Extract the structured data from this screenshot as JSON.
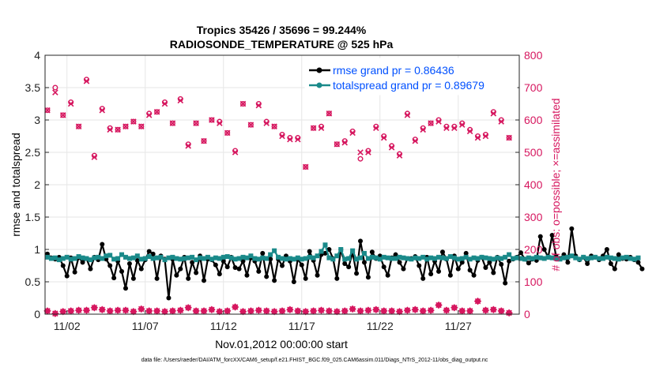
{
  "chart_data": {
    "type": "line",
    "title": "Tropics 35426 / 35696 = 99.244%",
    "subtitle": "RADIOSONDE_TEMPERATURE @ 525 hPa",
    "xlabel": "Nov.01,2012 00:00:00 start",
    "ylabel_left": "rmse and totalspread",
    "ylabel_right": "# of obs: o=possible; ×=assimilated",
    "footer": "data file: /Users/raeder/DAI/ATM_forcXX/CAM6_setup/f.e21.FHIST_BGC.f09_025.CAM6assim.011/Diags_NTrS_2012-11/obs_diag_output.nc",
    "xlim": [
      0.6,
      30.9
    ],
    "ylim_left": [
      0,
      4
    ],
    "ylim_right": [
      0,
      800
    ],
    "x_ticks": [
      {
        "v": 2,
        "label": "11/02"
      },
      {
        "v": 7,
        "label": "11/07"
      },
      {
        "v": 12,
        "label": "11/12"
      },
      {
        "v": 17,
        "label": "11/17"
      },
      {
        "v": 22,
        "label": "11/22"
      },
      {
        "v": 27,
        "label": "11/27"
      }
    ],
    "y_ticks_left": [
      "0",
      "0.5",
      "1",
      "1.5",
      "2",
      "2.5",
      "3",
      "3.5",
      "4"
    ],
    "y_ticks_right": [
      "0",
      "100",
      "200",
      "300",
      "400",
      "500",
      "600",
      "700",
      "800"
    ],
    "colors": {
      "rmse": "#000000",
      "totalspread": "#1a8a8a",
      "obs": "#d6175f",
      "legend_text": "#0050ff",
      "grid": "#e6e6e6"
    },
    "legend": [
      {
        "key": "rmse",
        "label": "rmse grand pr = 0.86436"
      },
      {
        "key": "totalspread",
        "label": "totalspread grand pr = 0.89679"
      }
    ],
    "series": [
      {
        "name": "rmse",
        "x0": 0.75,
        "dx": 0.25,
        "values": [
          0.93,
          0.87,
          0.85,
          0.88,
          0.75,
          0.59,
          0.87,
          0.65,
          0.88,
          0.8,
          0.86,
          0.7,
          0.88,
          0.84,
          1.08,
          0.85,
          0.75,
          0.56,
          0.82,
          0.66,
          0.4,
          0.78,
          0.55,
          0.83,
          0.7,
          0.84,
          0.97,
          0.93,
          0.55,
          0.9,
          0.85,
          0.25,
          0.85,
          0.6,
          0.7,
          0.88,
          0.55,
          0.8,
          0.64,
          0.9,
          0.52,
          0.85,
          0.84,
          0.76,
          0.62,
          0.82,
          0.73,
          0.88,
          0.72,
          0.7,
          0.82,
          0.6,
          0.87,
          0.82,
          0.66,
          0.94,
          0.58,
          0.85,
          0.52,
          0.85,
          0.75,
          0.9,
          0.82,
          0.5,
          0.85,
          0.76,
          0.55,
          0.97,
          0.83,
          0.6,
          0.92,
          0.94,
          1.0,
          0.86,
          0.55,
          1.0,
          0.78,
          0.73,
          0.95,
          0.63,
          1.13,
          0.8,
          0.57,
          0.96,
          0.86,
          0.9,
          0.73,
          0.6,
          0.87,
          0.92,
          0.8,
          0.7,
          0.86,
          0.86,
          0.89,
          0.75,
          0.55,
          0.88,
          0.62,
          0.82,
          0.66,
          0.96,
          0.85,
          0.6,
          0.9,
          0.7,
          0.8,
          0.94,
          0.68,
          0.6,
          0.83,
          0.88,
          0.72,
          0.8,
          0.64,
          0.88,
          0.77,
          0.48,
          0.82,
          0.85,
          0.88,
          0.95,
          0.85,
          0.79,
          0.85,
          0.83,
          1.2,
          1.0,
          0.88,
          1.22,
          0.9,
          0.86,
          0.92,
          0.8,
          1.32,
          0.9,
          0.84,
          0.88,
          0.78,
          0.9,
          0.88,
          0.84,
          0.9,
          1.0,
          0.78,
          0.7,
          0.92,
          0.86,
          0.85,
          0.88,
          0.84,
          0.8,
          0.7
        ]
      },
      {
        "name": "totalspread",
        "x0": 0.75,
        "dx": 0.25,
        "values": [
          0.88,
          0.86,
          0.87,
          0.84,
          0.86,
          0.88,
          0.85,
          0.86,
          0.89,
          0.87,
          0.86,
          0.84,
          0.87,
          0.88,
          0.86,
          0.9,
          0.91,
          0.85,
          0.86,
          0.92,
          0.88,
          0.86,
          0.87,
          0.9,
          0.85,
          0.86,
          0.89,
          0.86,
          0.87,
          0.88,
          0.84,
          0.87,
          0.88,
          0.86,
          0.85,
          0.86,
          0.87,
          0.88,
          0.84,
          0.87,
          0.86,
          0.88,
          0.85,
          0.87,
          0.86,
          0.88,
          0.89,
          0.87,
          0.85,
          0.86,
          0.88,
          0.87,
          0.9,
          0.86,
          0.85,
          0.87,
          0.86,
          0.92,
          0.98,
          0.88,
          0.86,
          0.85,
          0.86,
          0.85,
          0.87,
          0.85,
          0.86,
          0.88,
          0.87,
          0.9,
          0.97,
          1.07,
          0.87,
          0.85,
          0.9,
          1.0,
          0.85,
          0.86,
          0.98,
          0.85,
          0.87,
          0.94,
          0.86,
          0.88,
          0.87,
          0.85,
          0.88,
          0.87,
          0.86,
          0.86,
          0.88,
          0.87,
          0.86,
          0.85,
          0.87,
          0.86,
          0.88,
          0.85,
          0.87,
          0.86,
          0.88,
          0.87,
          0.86,
          0.89,
          0.87,
          0.85,
          0.86,
          0.88,
          0.85,
          0.87,
          0.86,
          0.88,
          0.87,
          0.86,
          0.85,
          0.87,
          0.86,
          0.88,
          0.92,
          0.86,
          0.87,
          0.86,
          0.85,
          0.87,
          0.86,
          0.88,
          0.87,
          0.86,
          0.88,
          0.87,
          0.86,
          0.85,
          0.87,
          0.88,
          0.9,
          0.87,
          0.85,
          0.88,
          0.86,
          0.87,
          0.88,
          0.86,
          0.86,
          0.88,
          0.87,
          0.86,
          0.85,
          0.87,
          0.88,
          0.86,
          0.85,
          0.87
        ]
      },
      {
        "name": "obs_possible",
        "x0": 0.75,
        "dx": 0.5,
        "values": [
          630,
          700,
          615,
          655,
          580,
          725,
          490,
          635,
          575,
          570,
          580,
          595,
          580,
          620,
          625,
          655,
          590,
          665,
          525,
          590,
          535,
          600,
          595,
          560,
          505,
          650,
          585,
          650,
          595,
          580,
          555,
          545,
          545,
          455,
          575,
          580,
          620,
          525,
          535,
          565,
          480,
          505,
          580,
          550,
          520,
          495,
          620,
          540,
          575,
          590,
          600,
          580,
          580,
          590,
          570,
          550,
          555,
          625,
          600,
          545
        ]
      },
      {
        "name": "obs_assimilated",
        "x0": 0.75,
        "dx": 0.5,
        "values": [
          630,
          685,
          615,
          650,
          580,
          720,
          485,
          630,
          570,
          570,
          580,
          595,
          580,
          615,
          625,
          650,
          590,
          660,
          520,
          590,
          535,
          600,
          590,
          560,
          500,
          650,
          585,
          645,
          590,
          580,
          550,
          540,
          540,
          455,
          575,
          575,
          620,
          525,
          530,
          560,
          500,
          500,
          575,
          545,
          515,
          490,
          615,
          535,
          570,
          590,
          595,
          575,
          575,
          585,
          565,
          545,
          550,
          620,
          595,
          545
        ]
      },
      {
        "name": "obs_bottom_possible",
        "x0": 0.75,
        "dx": 0.5,
        "values": [
          10,
          2,
          8,
          10,
          12,
          12,
          20,
          14,
          10,
          12,
          12,
          8,
          16,
          10,
          10,
          8,
          10,
          12,
          20,
          10,
          10,
          14,
          8,
          10,
          22,
          8,
          10,
          12,
          10,
          8,
          10,
          14,
          10,
          8,
          10,
          12,
          10,
          8,
          10,
          16,
          10,
          12,
          14,
          10,
          10,
          8,
          12,
          14,
          10,
          12,
          28,
          12,
          20,
          10,
          10,
          40,
          12,
          14,
          10,
          4
        ]
      },
      {
        "name": "obs_bottom_assimilated",
        "x0": 0.75,
        "dx": 0.5,
        "values": [
          10,
          2,
          8,
          10,
          12,
          12,
          20,
          14,
          10,
          12,
          12,
          8,
          16,
          10,
          10,
          8,
          10,
          12,
          20,
          10,
          10,
          14,
          8,
          10,
          22,
          8,
          10,
          12,
          10,
          8,
          10,
          14,
          10,
          8,
          10,
          12,
          10,
          8,
          10,
          16,
          10,
          12,
          14,
          10,
          10,
          8,
          12,
          14,
          10,
          12,
          28,
          12,
          20,
          10,
          10,
          40,
          12,
          14,
          10,
          4
        ]
      }
    ]
  }
}
